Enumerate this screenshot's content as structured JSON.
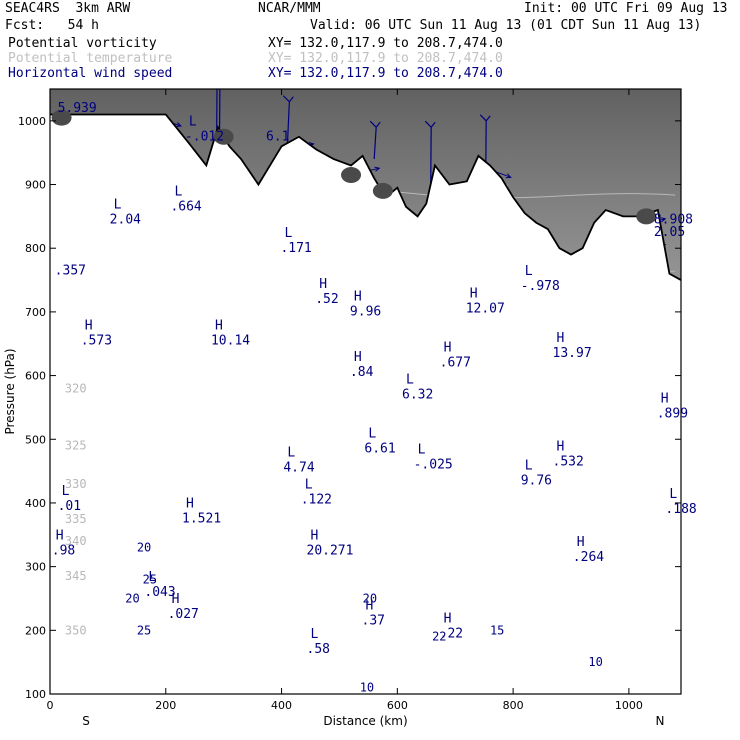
{
  "header": {
    "model": "SEAC4RS  3km ARW",
    "forecast": "Fcst:   54 h",
    "org": "NCAR/MMM",
    "valid": "Valid: 06 UTC Sun 11 Aug 13 (01 CDT Sun 11 Aug 13)",
    "init": "Init: 00 UTC Fri 09 Aug 13",
    "fields": [
      {
        "name": "Potential vorticity",
        "xy": "XY= 132.0,117.9 to 208.7,474.0",
        "color": "#000000"
      },
      {
        "name": "Potential temperature",
        "xy": "XY= 132.0,117.9 to 208.7,474.0",
        "color": "#c0c0c0"
      },
      {
        "name": "Horizontal wind speed",
        "xy": "XY= 132.0,117.9 to 208.7,474.0",
        "color": "#000080"
      }
    ]
  },
  "chart_data": {
    "type": "cross-section",
    "xlabel": "Distance (km)",
    "ylabel": "Pressure (hPa)",
    "xlim": [
      0,
      1090
    ],
    "ylim": [
      1050,
      100
    ],
    "x_ticks": [
      "0",
      "200",
      "400",
      "600",
      "800",
      "1000"
    ],
    "y_ticks": [
      "100",
      "200",
      "300",
      "400",
      "500",
      "600",
      "700",
      "800",
      "900",
      "1000"
    ],
    "x_end_labels": {
      "left": "S",
      "right": "N"
    },
    "colors": {
      "wind": "#000080",
      "theta": "#b8b8b8",
      "pv_fill": "#ffb6b6",
      "terrain": "#000000",
      "pv_dark": "#4a4a4a"
    },
    "theta_labels": [
      {
        "x": 5,
        "p": 200,
        "v": "350"
      },
      {
        "x": 5,
        "p": 285,
        "v": "345"
      },
      {
        "x": 5,
        "p": 340,
        "v": "340"
      },
      {
        "x": 5,
        "p": 375,
        "v": "335"
      },
      {
        "x": 5,
        "p": 430,
        "v": "330"
      },
      {
        "x": 5,
        "p": 490,
        "v": "325"
      },
      {
        "x": 5,
        "p": 580,
        "v": "320"
      }
    ],
    "wind_labels": [
      {
        "x": 150,
        "p": 200,
        "v": "25"
      },
      {
        "x": 130,
        "p": 250,
        "v": "20"
      },
      {
        "x": 160,
        "p": 280,
        "v": "25"
      },
      {
        "x": 150,
        "p": 330,
        "v": "20"
      },
      {
        "x": 535,
        "p": 110,
        "v": "10"
      },
      {
        "x": 930,
        "p": 150,
        "v": "10"
      },
      {
        "x": 760,
        "p": 200,
        "v": "15"
      },
      {
        "x": 660,
        "p": 190,
        "v": "22"
      },
      {
        "x": 540,
        "p": 250,
        "v": "20"
      }
    ],
    "extrema": [
      {
        "x": 10,
        "p": 330,
        "label": "H",
        "value": ".98"
      },
      {
        "x": 20,
        "p": 400,
        "label": "L",
        "value": ".01"
      },
      {
        "x": 170,
        "p": 265,
        "label": "L",
        "value": ".043"
      },
      {
        "x": 210,
        "p": 230,
        "label": "H",
        "value": ".027"
      },
      {
        "x": 235,
        "p": 380,
        "label": "H",
        "value": "1.521"
      },
      {
        "x": 450,
        "p": 330,
        "label": "H",
        "value": "20.271"
      },
      {
        "x": 450,
        "p": 175,
        "label": "L",
        "value": ".58"
      },
      {
        "x": 545,
        "p": 220,
        "label": "H",
        "value": ".37"
      },
      {
        "x": 680,
        "p": 200,
        "label": "H",
        "value": ".22"
      },
      {
        "x": 910,
        "p": 320,
        "label": "H",
        "value": ".264"
      },
      {
        "x": 1070,
        "p": 395,
        "label": "L",
        "value": ".188"
      },
      {
        "x": 440,
        "p": 410,
        "label": "L",
        "value": ".122"
      },
      {
        "x": 410,
        "p": 460,
        "label": "L",
        "value": "4.74"
      },
      {
        "x": 550,
        "p": 490,
        "label": "L",
        "value": "6.61"
      },
      {
        "x": 635,
        "p": 465,
        "label": "L",
        "value": "-.025"
      },
      {
        "x": 820,
        "p": 440,
        "label": "L",
        "value": "9.76"
      },
      {
        "x": 875,
        "p": 470,
        "label": "H",
        "value": ".532"
      },
      {
        "x": 1055,
        "p": 545,
        "label": "H",
        "value": ".899"
      },
      {
        "x": 60,
        "p": 660,
        "label": "H",
        "value": ".573"
      },
      {
        "x": 285,
        "p": 660,
        "label": "H",
        "value": "10.14"
      },
      {
        "x": 525,
        "p": 610,
        "label": "H",
        "value": ".84"
      },
      {
        "x": 615,
        "p": 575,
        "label": "L",
        "value": "6.32"
      },
      {
        "x": 680,
        "p": 625,
        "label": "H",
        "value": ".677"
      },
      {
        "x": 875,
        "p": 640,
        "label": "H",
        "value": "13.97"
      },
      {
        "x": 465,
        "p": 725,
        "label": "H",
        "value": ".52"
      },
      {
        "x": 525,
        "p": 705,
        "label": "H",
        "value": "9.96"
      },
      {
        "x": 725,
        "p": 710,
        "label": "H",
        "value": "12.07"
      },
      {
        "x": 820,
        "p": 745,
        "label": "L",
        "value": "-.978"
      },
      {
        "x": 15,
        "p": 770,
        "label": "",
        "value": ".357"
      },
      {
        "x": 405,
        "p": 805,
        "label": "L",
        "value": ".171"
      },
      {
        "x": 110,
        "p": 850,
        "label": "L",
        "value": "2.04"
      },
      {
        "x": 215,
        "p": 870,
        "label": "L",
        "value": ".664"
      },
      {
        "x": 240,
        "p": 980,
        "label": "L",
        "value": "-.012"
      },
      {
        "x": 380,
        "p": 980,
        "label": "",
        "value": "6.1"
      },
      {
        "x": 1050,
        "p": 830,
        "label": "",
        "value": "2.05"
      },
      {
        "x": 1050,
        "p": 850,
        "label": "",
        "value": "8.908"
      },
      {
        "x": 20,
        "p": 1025,
        "label": "",
        "value": "5.939"
      }
    ]
  }
}
